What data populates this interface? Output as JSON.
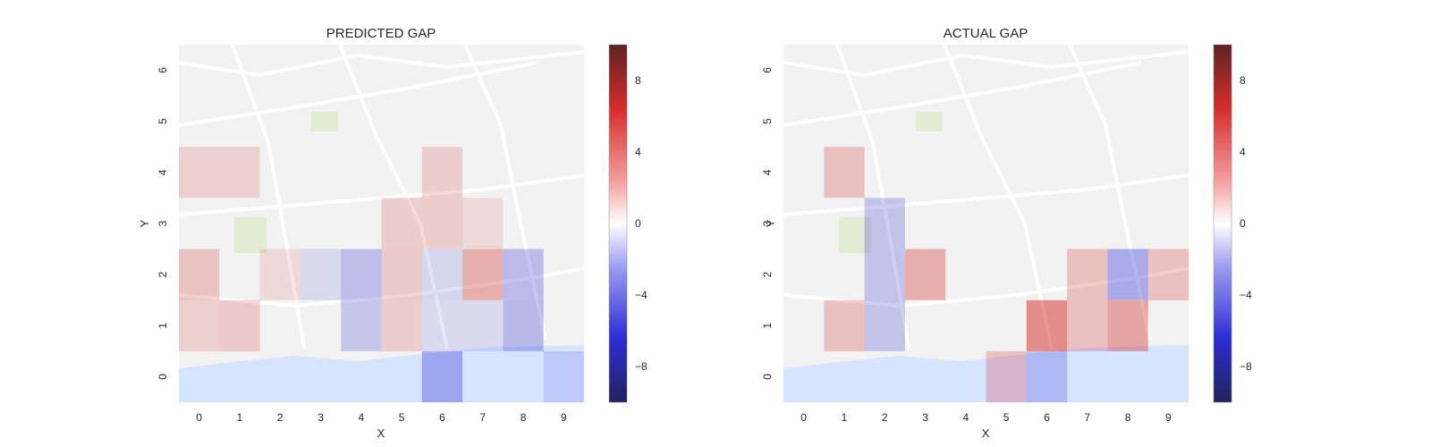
{
  "colors": {
    "negative": "#0000cc",
    "zero": "#ffffff",
    "positive": "#cc0000",
    "map_background": "#f2f2f2",
    "water": "#d6e4ff",
    "road": "#ffffff",
    "park": "#e2ecd3"
  },
  "chart_data": [
    {
      "type": "heatmap",
      "title": "PREDICTED GAP",
      "xlabel": "X",
      "ylabel": "Y",
      "x_ticks": [
        "0",
        "1",
        "2",
        "3",
        "4",
        "5",
        "6",
        "7",
        "8",
        "9"
      ],
      "y_ticks": [
        "0",
        "1",
        "2",
        "3",
        "4",
        "5",
        "6"
      ],
      "xlim": [
        -0.5,
        9.5
      ],
      "ylim": [
        -0.5,
        6.5
      ],
      "colorbar": {
        "range": [
          -10,
          10
        ],
        "ticks": [
          "8",
          "4",
          "0",
          "−4",
          "−8"
        ],
        "tick_values": [
          8,
          4,
          0,
          -4,
          -8
        ]
      },
      "background": "street map",
      "cells": [
        {
          "x": 0,
          "y": 4,
          "v": 1.0
        },
        {
          "x": 1,
          "y": 4,
          "v": 1.0
        },
        {
          "x": 0,
          "y": 2,
          "v": 1.8
        },
        {
          "x": 0,
          "y": 1,
          "v": 1.0
        },
        {
          "x": 1,
          "y": 1,
          "v": 1.4
        },
        {
          "x": 2,
          "y": 2,
          "v": 0.4
        },
        {
          "x": 3,
          "y": 2,
          "v": -0.3
        },
        {
          "x": 4,
          "y": 2,
          "v": -2.2
        },
        {
          "x": 4,
          "y": 1,
          "v": -1.6
        },
        {
          "x": 5,
          "y": 3,
          "v": 1.2
        },
        {
          "x": 5,
          "y": 2,
          "v": 1.4
        },
        {
          "x": 5,
          "y": 1,
          "v": 1.2
        },
        {
          "x": 6,
          "y": 4,
          "v": 1.2
        },
        {
          "x": 6,
          "y": 3,
          "v": 1.2
        },
        {
          "x": 6,
          "y": 2,
          "v": -0.6
        },
        {
          "x": 6,
          "y": 1,
          "v": -0.3
        },
        {
          "x": 6,
          "y": 0,
          "v": -3.0
        },
        {
          "x": 7,
          "y": 2,
          "v": 3.2
        },
        {
          "x": 7,
          "y": 3,
          "v": 0.4
        },
        {
          "x": 7,
          "y": 1,
          "v": -0.3
        },
        {
          "x": 8,
          "y": 2,
          "v": -2.4
        },
        {
          "x": 8,
          "y": 1,
          "v": -2.6
        },
        {
          "x": 9,
          "y": 0,
          "v": -0.6
        }
      ]
    },
    {
      "type": "heatmap",
      "title": "ACTUAL GAP",
      "xlabel": "X",
      "ylabel": "Y",
      "x_ticks": [
        "0",
        "1",
        "2",
        "3",
        "4",
        "5",
        "6",
        "7",
        "8",
        "9"
      ],
      "y_ticks": [
        "0",
        "1",
        "2",
        "3",
        "4",
        "5",
        "6"
      ],
      "xlim": [
        -0.5,
        9.5
      ],
      "ylim": [
        -0.5,
        6.5
      ],
      "colorbar": {
        "range": [
          -10,
          10
        ],
        "ticks": [
          "8",
          "4",
          "0",
          "−4",
          "−8"
        ],
        "tick_values": [
          8,
          4,
          0,
          -4,
          -8
        ]
      },
      "background": "street map",
      "cells": [
        {
          "x": 1,
          "y": 4,
          "v": 2.0
        },
        {
          "x": 1,
          "y": 1,
          "v": 2.0
        },
        {
          "x": 2,
          "y": 3,
          "v": -1.8
        },
        {
          "x": 2,
          "y": 2,
          "v": -1.8
        },
        {
          "x": 2,
          "y": 1,
          "v": -1.8
        },
        {
          "x": 3,
          "y": 2,
          "v": 3.2
        },
        {
          "x": 5,
          "y": 0,
          "v": 2.0
        },
        {
          "x": 6,
          "y": 1,
          "v": 5.5
        },
        {
          "x": 6,
          "y": 0,
          "v": -1.8
        },
        {
          "x": 7,
          "y": 2,
          "v": 2.0
        },
        {
          "x": 7,
          "y": 1,
          "v": 2.0
        },
        {
          "x": 8,
          "y": 2,
          "v": -3.5
        },
        {
          "x": 8,
          "y": 1,
          "v": 3.8
        },
        {
          "x": 9,
          "y": 2,
          "v": 2.0
        }
      ]
    }
  ]
}
